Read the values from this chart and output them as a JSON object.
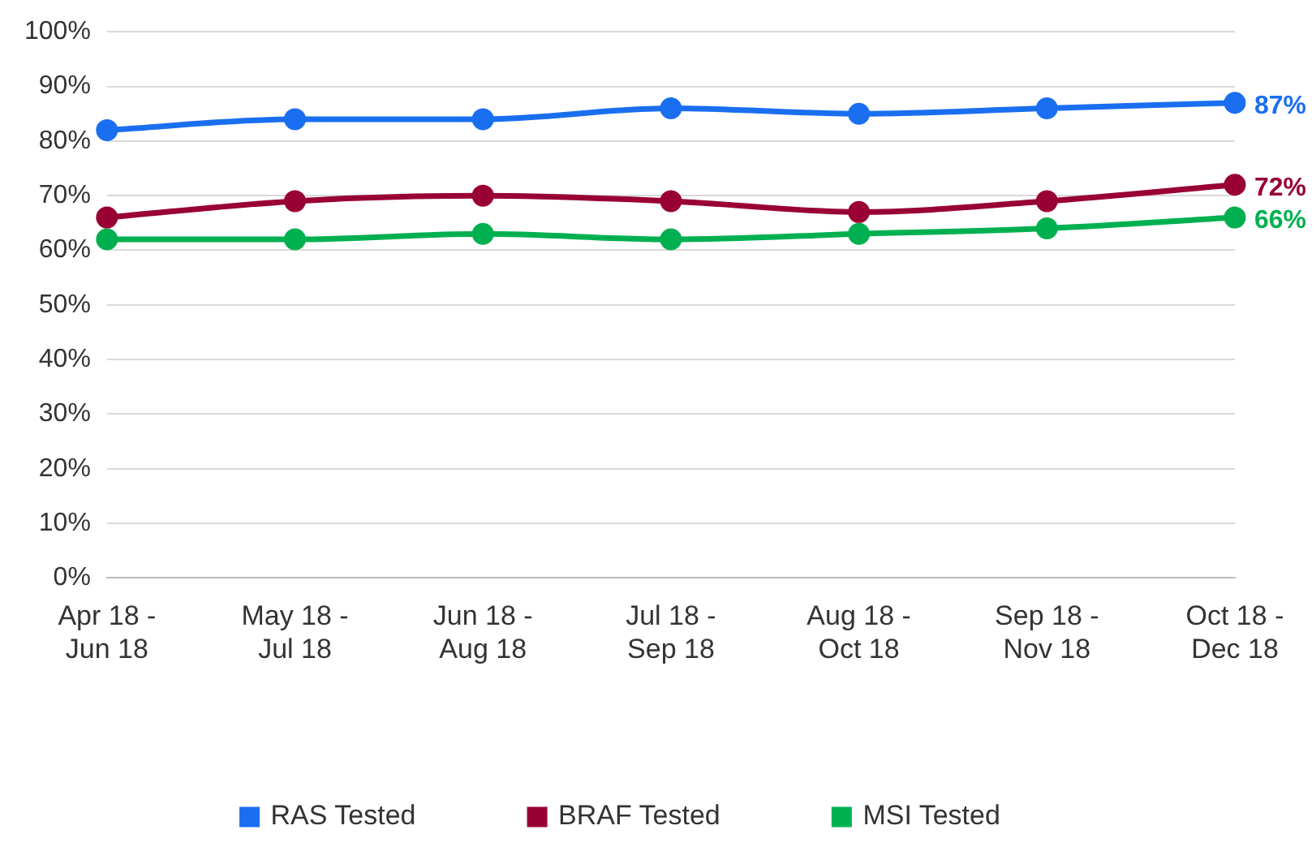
{
  "chart_data": {
    "type": "line",
    "categories": [
      "Apr 18 - Jun 18",
      "May 18 - Jul 18",
      "Jun 18 - Aug 18",
      "Jul 18 - Sep 18",
      "Aug 18 - Oct 18",
      "Sep 18 - Nov 18",
      "Oct 18 - Dec 18"
    ],
    "series": [
      {
        "name": "RAS Tested",
        "color": "#1a6ff0",
        "values": [
          82,
          84,
          84,
          86,
          85,
          86,
          87
        ],
        "value_labels": [
          null,
          null,
          null,
          null,
          null,
          null,
          "87%"
        ]
      },
      {
        "name": "BRAF Tested",
        "color": "#990033",
        "values": [
          66,
          69,
          70,
          69,
          67,
          69,
          72
        ],
        "value_labels": [
          null,
          null,
          null,
          null,
          null,
          null,
          "72%"
        ]
      },
      {
        "name": "MSI Tested",
        "color": "#00b050",
        "values": [
          62,
          62,
          63,
          62,
          63,
          64,
          66
        ],
        "value_labels": [
          null,
          null,
          null,
          null,
          null,
          null,
          "66%"
        ]
      }
    ],
    "ylim": [
      0,
      100
    ],
    "yticks": [
      {
        "value": 0,
        "label": "0%"
      },
      {
        "value": 10,
        "label": "10%"
      },
      {
        "value": 20,
        "label": "20%"
      },
      {
        "value": 30,
        "label": "30%"
      },
      {
        "value": 40,
        "label": "40%"
      },
      {
        "value": 50,
        "label": "50%"
      },
      {
        "value": 60,
        "label": "60%"
      },
      {
        "value": 70,
        "label": "70%"
      },
      {
        "value": 80,
        "label": "80%"
      },
      {
        "value": 90,
        "label": "90%"
      },
      {
        "value": 100,
        "label": "100%"
      }
    ],
    "grid": "y",
    "legend": "bottom",
    "marker": "circle",
    "line_style": "solid"
  }
}
